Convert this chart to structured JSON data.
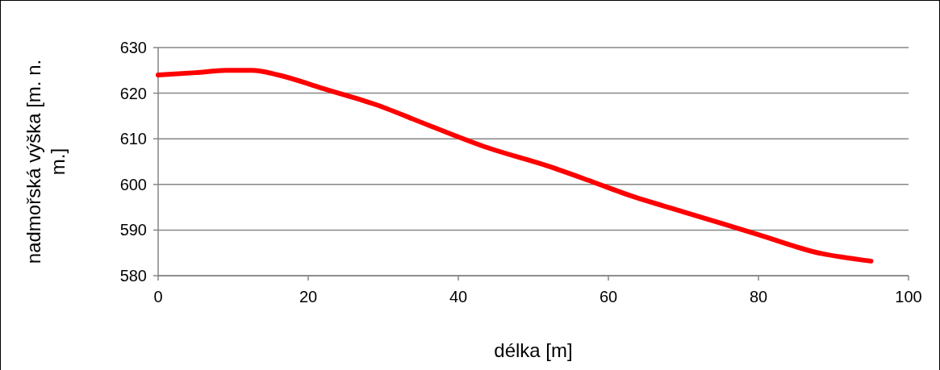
{
  "chart_data": {
    "type": "line",
    "xlabel": "délka [m]",
    "ylabel": "nadmořská výška [m. n. m.]",
    "x": [
      0,
      5,
      9,
      12.5,
      16,
      22,
      29,
      36,
      44,
      52,
      58,
      63,
      70,
      80,
      88,
      95
    ],
    "series": [
      {
        "color": "#ff0000",
        "values": [
          624,
          624.5,
          625,
          625,
          624,
          621,
          617.5,
          613,
          608,
          604,
          600.5,
          597.5,
          594,
          589,
          585,
          583.2
        ]
      }
    ],
    "xlim": [
      0,
      100
    ],
    "xticks": [
      0,
      20,
      40,
      60,
      80,
      100
    ],
    "ylim": [
      580,
      630
    ],
    "yticks": [
      580,
      590,
      600,
      610,
      620,
      630
    ],
    "grid": "y",
    "marker": "none",
    "line_style": "solid"
  }
}
